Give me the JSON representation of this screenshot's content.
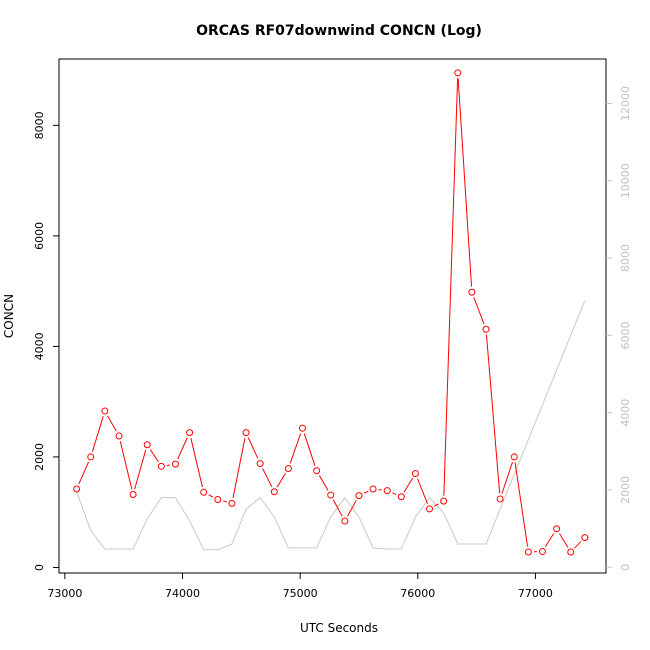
{
  "chart_data": {
    "type": "line",
    "title": "ORCAS RF07downwind CONCN (Log)",
    "xlabel": "UTC Seconds",
    "ylabel": "CONCN",
    "xlim": [
      72950,
      77600
    ],
    "ylim": [
      -100,
      9200
    ],
    "y2lim": [
      -150,
      13150
    ],
    "x_ticks": [
      73000,
      74000,
      75000,
      76000,
      77000
    ],
    "y_ticks": [
      0,
      2000,
      4000,
      6000,
      8000
    ],
    "y2_ticks": [
      0,
      2000,
      4000,
      6000,
      8000,
      10000,
      12000
    ],
    "grid": false,
    "legend": "none",
    "colors": {
      "primary": "#ff0000",
      "secondary": "#c8c8c8",
      "axis": "#000000"
    },
    "series": [
      {
        "axis": "left",
        "style": "line+points",
        "x": [
          73100,
          73220,
          73340,
          73460,
          73580,
          73700,
          73820,
          73940,
          74060,
          74180,
          74300,
          74420,
          74540,
          74660,
          74780,
          74900,
          75020,
          75140,
          75260,
          75380,
          75500,
          75620,
          75740,
          75860,
          75980,
          76100,
          76220,
          76340,
          76460,
          76580,
          76700,
          76820,
          76940,
          77060,
          77180,
          77300,
          77420
        ],
        "values": [
          1420,
          2000,
          2830,
          2380,
          1320,
          2220,
          1830,
          1870,
          2440,
          1360,
          1230,
          1160,
          2440,
          1880,
          1370,
          1790,
          2520,
          1750,
          1310,
          840,
          1300,
          1420,
          1390,
          1280,
          1700,
          1060,
          1200,
          8950,
          4980,
          4310,
          1240,
          2000,
          280,
          290,
          700,
          280,
          540
        ]
      },
      {
        "axis": "right",
        "style": "line",
        "x": [
          73100,
          73220,
          73340,
          73460,
          73580,
          73700,
          73820,
          73940,
          74060,
          74180,
          74300,
          74420,
          74540,
          74660,
          74780,
          74900,
          75020,
          75140,
          75260,
          75380,
          75500,
          75620,
          75740,
          75860,
          75980,
          76100,
          76220,
          76340,
          76460,
          76580,
          76700,
          77420
        ],
        "values": [
          1950,
          950,
          470,
          470,
          470,
          1250,
          1800,
          1800,
          1200,
          450,
          450,
          600,
          1500,
          1800,
          1300,
          500,
          500,
          500,
          1300,
          1800,
          1300,
          500,
          470,
          470,
          1300,
          1800,
          1400,
          600,
          600,
          600,
          1500,
          6900
        ]
      }
    ]
  }
}
